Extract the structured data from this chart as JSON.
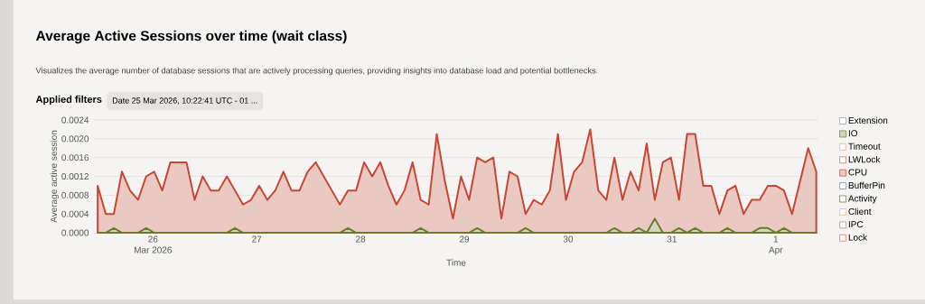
{
  "chart_data": {
    "type": "area",
    "title": "Average Active Sessions over time (wait class)",
    "subtitle": "Visualizes the average number of database sessions that are actively processing queries, providing insights into database load and potential bottlenecks.",
    "annotations": [
      "Applied filters",
      "Date 25 Mar 2026, 10:22:41 UTC - 01 ..."
    ],
    "xlabel": "Time",
    "ylabel": "Average active session",
    "x": [
      "2026-03-25T11:14",
      "2026-03-25T13:06",
      "2026-03-25T14:58",
      "2026-03-25T16:50",
      "2026-03-25T18:42",
      "2026-03-25T20:34",
      "2026-03-25T22:26",
      "2026-03-26T00:18",
      "2026-03-26T02:10",
      "2026-03-26T04:02",
      "2026-03-26T05:54",
      "2026-03-26T07:46",
      "2026-03-26T09:38",
      "2026-03-26T11:30",
      "2026-03-26T13:22",
      "2026-03-26T15:14",
      "2026-03-26T17:06",
      "2026-03-26T18:58",
      "2026-03-26T20:50",
      "2026-03-26T22:42",
      "2026-03-27T00:34",
      "2026-03-27T02:26",
      "2026-03-27T04:18",
      "2026-03-27T06:10",
      "2026-03-27T08:02",
      "2026-03-27T09:54",
      "2026-03-27T11:46",
      "2026-03-27T13:38",
      "2026-03-27T15:30",
      "2026-03-27T17:22",
      "2026-03-27T19:14",
      "2026-03-27T21:06",
      "2026-03-27T22:58",
      "2026-03-28T00:50",
      "2026-03-28T02:42",
      "2026-03-28T04:34",
      "2026-03-28T06:26",
      "2026-03-28T08:18",
      "2026-03-28T10:10",
      "2026-03-28T12:02",
      "2026-03-28T13:54",
      "2026-03-28T15:46",
      "2026-03-28T17:38",
      "2026-03-28T19:30",
      "2026-03-28T21:22",
      "2026-03-28T23:14",
      "2026-03-29T01:06",
      "2026-03-29T02:58",
      "2026-03-29T04:50",
      "2026-03-29T06:42",
      "2026-03-29T08:34",
      "2026-03-29T10:26",
      "2026-03-29T12:18",
      "2026-03-29T14:10",
      "2026-03-29T16:02",
      "2026-03-29T17:54",
      "2026-03-29T19:46",
      "2026-03-29T21:38",
      "2026-03-29T23:30",
      "2026-03-30T01:22",
      "2026-03-30T03:14",
      "2026-03-30T05:06",
      "2026-03-30T06:58",
      "2026-03-30T08:50",
      "2026-03-30T10:42",
      "2026-03-30T12:34",
      "2026-03-30T14:26",
      "2026-03-30T16:18",
      "2026-03-30T18:10",
      "2026-03-30T20:02",
      "2026-03-30T21:54",
      "2026-03-30T23:46",
      "2026-03-31T01:38",
      "2026-03-31T03:30",
      "2026-03-31T05:22",
      "2026-03-31T07:14",
      "2026-03-31T09:06",
      "2026-03-31T10:58",
      "2026-03-31T12:50",
      "2026-03-31T14:42",
      "2026-03-31T16:34",
      "2026-03-31T18:26",
      "2026-03-31T20:18",
      "2026-03-31T22:10",
      "2026-04-01T00:02",
      "2026-04-01T01:54",
      "2026-04-01T03:46",
      "2026-04-01T05:38",
      "2026-04-01T07:30",
      "2026-04-01T09:22"
    ],
    "series": [
      {
        "name": "Extension",
        "color": "#8c93a8",
        "values": [
          null,
          null,
          null,
          null,
          null,
          null,
          null,
          null,
          null,
          null,
          null,
          null,
          null,
          null,
          null,
          null,
          null,
          null,
          null,
          null,
          null,
          null,
          null,
          null,
          null,
          null,
          null,
          null,
          null,
          null,
          null,
          null,
          null,
          null,
          null,
          null,
          null,
          null,
          null,
          null,
          null,
          null,
          null,
          null,
          null,
          null,
          null,
          null,
          null,
          null,
          null,
          null,
          null,
          null,
          null,
          null,
          null,
          null,
          null,
          null,
          null,
          null,
          null,
          null,
          null,
          null,
          null,
          null,
          null,
          null,
          null,
          null,
          null,
          null,
          null,
          null,
          null,
          null,
          null,
          null,
          null,
          null,
          null,
          null,
          null,
          null,
          null,
          null,
          null,
          null
        ]
      },
      {
        "name": "IO",
        "color": "#6b7a2c",
        "values": [
          0,
          0,
          0.0001,
          0,
          0,
          0,
          0.0001,
          0,
          0,
          0,
          0,
          0,
          0,
          0,
          0,
          0,
          0,
          0.0001,
          0,
          0,
          0,
          0,
          0,
          0,
          0,
          0,
          0,
          0,
          0,
          0,
          0,
          0.0001,
          0,
          0,
          0,
          0,
          0,
          0,
          0,
          0,
          0.0001,
          0,
          0,
          0,
          0,
          0,
          0,
          0.0001,
          0,
          0,
          0,
          0,
          0,
          0.0001,
          0,
          0,
          0,
          0,
          0,
          0,
          0,
          0,
          0,
          0,
          0.0001,
          0,
          0,
          0.0001,
          0,
          0.0003,
          0,
          0,
          0.0001,
          0,
          0.0001,
          0,
          0,
          0,
          0.0001,
          0,
          0,
          0,
          0.0001,
          0.0001,
          0,
          0.0001,
          0,
          0,
          0,
          0
        ]
      },
      {
        "name": "Timeout",
        "color": "#e0b07a",
        "values": [
          null,
          null,
          null,
          null,
          null,
          null,
          null,
          null,
          null,
          null,
          null,
          null,
          null,
          null,
          null,
          null,
          null,
          null,
          null,
          null,
          null,
          null,
          null,
          null,
          null,
          null,
          null,
          null,
          null,
          null,
          null,
          null,
          null,
          null,
          null,
          null,
          null,
          null,
          null,
          null,
          null,
          null,
          null,
          null,
          null,
          null,
          null,
          null,
          null,
          null,
          null,
          null,
          null,
          null,
          null,
          null,
          null,
          null,
          null,
          null,
          null,
          null,
          null,
          null,
          null,
          null,
          null,
          null,
          null,
          null,
          null,
          null,
          null,
          null,
          null,
          null,
          null,
          null,
          null,
          null,
          null,
          null,
          null,
          null,
          null,
          null,
          null,
          null,
          null,
          null
        ]
      },
      {
        "name": "LWLock",
        "color": "#a4725a",
        "values": [
          null,
          null,
          null,
          null,
          null,
          null,
          null,
          null,
          null,
          null,
          null,
          null,
          null,
          null,
          null,
          null,
          null,
          null,
          null,
          null,
          null,
          null,
          null,
          null,
          null,
          null,
          null,
          null,
          null,
          null,
          null,
          null,
          null,
          null,
          null,
          null,
          null,
          null,
          null,
          null,
          null,
          null,
          null,
          null,
          null,
          null,
          null,
          null,
          null,
          null,
          null,
          null,
          null,
          null,
          null,
          null,
          null,
          null,
          null,
          null,
          null,
          null,
          null,
          null,
          null,
          null,
          null,
          null,
          null,
          null,
          null,
          null,
          null,
          null,
          null,
          null,
          null,
          null,
          null,
          null,
          null,
          null,
          null,
          null,
          null,
          null,
          null,
          null,
          null,
          null
        ]
      },
      {
        "name": "CPU",
        "color": "#c74634",
        "values": [
          0.001,
          0.0004,
          0.0004,
          0.0013,
          0.0009,
          0.0007,
          0.0012,
          0.0013,
          0.0009,
          0.0015,
          0.0015,
          0.0015,
          0.0007,
          0.0012,
          0.0009,
          0.0009,
          0.0012,
          0.0009,
          0.0006,
          0.0007,
          0.001,
          0.0007,
          0.0009,
          0.0013,
          0.0009,
          0.0009,
          0.0013,
          0.0015,
          0.0012,
          0.0009,
          0.0006,
          0.0009,
          0.0009,
          0.0015,
          0.0012,
          0.0015,
          0.001,
          0.0006,
          0.0009,
          0.0015,
          0.0007,
          0.0006,
          0.0021,
          0.0011,
          0.0003,
          0.0012,
          0.0007,
          0.0016,
          0.0015,
          0.0016,
          0.0003,
          0.0013,
          0.0012,
          0.0004,
          0.0007,
          0.0006,
          0.0009,
          0.0021,
          0.0007,
          0.0013,
          0.0015,
          0.0022,
          0.0009,
          0.0007,
          0.0016,
          0.0007,
          0.0013,
          0.0009,
          0.0019,
          0.0007,
          0.0015,
          0.0016,
          0.0007,
          0.0021,
          0.0021,
          0.001,
          0.001,
          0.0004,
          0.0009,
          0.001,
          0.0004,
          0.0007,
          0.0007,
          0.001,
          0.001,
          0.0009,
          0.0004,
          0.0011,
          0.0018,
          0.0013
        ]
      },
      {
        "name": "BufferPin",
        "color": "#7a8090",
        "values": [
          null,
          null,
          null,
          null,
          null,
          null,
          null,
          null,
          null,
          null,
          null,
          null,
          null,
          null,
          null,
          null,
          null,
          null,
          null,
          null,
          null,
          null,
          null,
          null,
          null,
          null,
          null,
          null,
          null,
          null,
          null,
          null,
          null,
          null,
          null,
          null,
          null,
          null,
          null,
          null,
          null,
          null,
          null,
          null,
          null,
          null,
          null,
          null,
          null,
          null,
          null,
          null,
          null,
          null,
          null,
          null,
          null,
          null,
          null,
          null,
          null,
          null,
          null,
          null,
          null,
          null,
          null,
          null,
          null,
          null,
          null,
          null,
          null,
          null,
          null,
          null,
          null,
          null,
          null,
          null,
          null,
          null,
          null,
          null,
          null,
          null,
          null,
          null,
          null,
          null
        ]
      },
      {
        "name": "Activity",
        "color": "#5f6f35",
        "values": [
          null,
          null,
          null,
          null,
          null,
          null,
          null,
          null,
          null,
          null,
          null,
          null,
          null,
          null,
          null,
          null,
          null,
          null,
          null,
          null,
          null,
          null,
          null,
          null,
          null,
          null,
          null,
          null,
          null,
          null,
          null,
          null,
          null,
          null,
          null,
          null,
          null,
          null,
          null,
          null,
          null,
          null,
          null,
          null,
          null,
          null,
          null,
          null,
          null,
          null,
          null,
          null,
          null,
          null,
          null,
          null,
          null,
          null,
          null,
          null,
          null,
          null,
          null,
          null,
          null,
          null,
          null,
          null,
          null,
          null,
          null,
          null,
          null,
          null,
          null,
          null,
          null,
          null,
          null,
          null,
          null,
          null,
          null,
          null,
          null,
          null,
          null,
          null,
          null,
          null
        ]
      },
      {
        "name": "Client",
        "color": "#e2b27c",
        "values": [
          null,
          null,
          null,
          null,
          null,
          null,
          null,
          null,
          null,
          null,
          null,
          null,
          null,
          null,
          null,
          null,
          null,
          null,
          null,
          null,
          null,
          null,
          null,
          null,
          null,
          null,
          null,
          null,
          null,
          null,
          null,
          null,
          null,
          null,
          null,
          null,
          null,
          null,
          null,
          null,
          null,
          null,
          null,
          null,
          null,
          null,
          null,
          null,
          null,
          null,
          null,
          null,
          null,
          null,
          null,
          null,
          null,
          null,
          null,
          null,
          null,
          null,
          null,
          null,
          null,
          null,
          null,
          null,
          null,
          null,
          null,
          null,
          null,
          null,
          null,
          null,
          null,
          null,
          null,
          null,
          null,
          null,
          null,
          null,
          null,
          null,
          null,
          null,
          null,
          null
        ]
      },
      {
        "name": "IPC",
        "color": "#a88470",
        "values": [
          null,
          null,
          null,
          null,
          null,
          null,
          null,
          null,
          null,
          null,
          null,
          null,
          null,
          null,
          null,
          null,
          null,
          null,
          null,
          null,
          null,
          null,
          null,
          null,
          null,
          null,
          null,
          null,
          null,
          null,
          null,
          null,
          null,
          null,
          null,
          null,
          null,
          null,
          null,
          null,
          null,
          null,
          null,
          null,
          null,
          null,
          null,
          null,
          null,
          null,
          null,
          null,
          null,
          null,
          null,
          null,
          null,
          null,
          null,
          null,
          null,
          null,
          null,
          null,
          null,
          null,
          null,
          null,
          null,
          null,
          null,
          null,
          null,
          null,
          null,
          null,
          null,
          null,
          null,
          null,
          null,
          null,
          null,
          null,
          null,
          null,
          null,
          null,
          null,
          null
        ]
      },
      {
        "name": "Lock",
        "color": "#d4705c",
        "values": [
          null,
          null,
          null,
          null,
          null,
          null,
          null,
          null,
          null,
          null,
          null,
          null,
          null,
          null,
          null,
          null,
          null,
          null,
          null,
          null,
          null,
          null,
          null,
          null,
          null,
          null,
          null,
          null,
          null,
          null,
          null,
          null,
          null,
          null,
          null,
          null,
          null,
          null,
          null,
          null,
          null,
          null,
          null,
          null,
          null,
          null,
          null,
          null,
          null,
          null,
          null,
          null,
          null,
          null,
          null,
          null,
          null,
          null,
          null,
          null,
          null,
          null,
          null,
          null,
          null,
          null,
          null,
          null,
          null,
          null,
          null,
          null,
          null,
          null,
          null,
          null,
          null,
          null,
          null,
          null,
          null,
          null,
          null,
          null,
          null,
          null,
          null,
          null,
          null,
          null
        ]
      }
    ],
    "xlim": [
      "2026-03-25T10:22",
      "2026-04-01T09:52"
    ],
    "xticks": [
      {
        "value": "2026-03-26",
        "label": "26 Mar 2026"
      },
      {
        "value": "2026-03-27",
        "label": "27"
      },
      {
        "value": "2026-03-28",
        "label": "28"
      },
      {
        "value": "2026-03-29",
        "label": "29"
      },
      {
        "value": "2026-03-30",
        "label": "30"
      },
      {
        "value": "2026-03-31",
        "label": "31"
      },
      {
        "value": "2026-04-01",
        "label": "1 Apr"
      }
    ],
    "ylim": [
      0,
      0.0024
    ],
    "yticks": [
      {
        "value": 0,
        "label": "0.0000"
      },
      {
        "value": 0.0004,
        "label": "0.0004"
      },
      {
        "value": 0.0008,
        "label": "0.0008"
      },
      {
        "value": 0.0012,
        "label": "0.0012"
      },
      {
        "value": 0.0016,
        "label": "0.0016"
      },
      {
        "value": 0.002,
        "label": "0.0020"
      },
      {
        "value": 0.0024,
        "label": "0.0024"
      }
    ],
    "grid": "y",
    "legend": "right"
  }
}
